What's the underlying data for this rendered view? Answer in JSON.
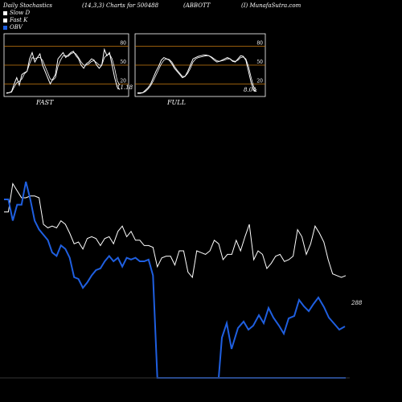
{
  "header": {
    "left": "Daily Stochastics",
    "center": "(14,3,3) Charts for 500488",
    "symbol": "(ABBOTT",
    "site": "(I) MunafaSutra.com"
  },
  "legend": [
    {
      "label": "Slow  D",
      "color": "#ffffff"
    },
    {
      "label": "Fast K",
      "color": "#ffffff"
    },
    {
      "label": "OBV",
      "color": "#1f5fe0"
    }
  ],
  "colors": {
    "obv": "#1f5fe0",
    "line": "#ffffff",
    "grid": "#c87a10",
    "bg": "#000000"
  },
  "chart_data": [
    {
      "type": "line",
      "panel": "fast",
      "label": "FAST",
      "last_value_label": "11.18",
      "ylim": [
        0,
        100
      ],
      "yticks": [
        20,
        50,
        80
      ],
      "series": [
        {
          "name": "Fast K",
          "values": [
            5,
            6,
            8,
            20,
            30,
            18,
            35,
            38,
            40,
            60,
            70,
            55,
            62,
            68,
            50,
            40,
            30,
            20,
            28,
            35,
            60,
            65,
            70,
            62,
            66,
            70,
            72,
            65,
            60,
            50,
            45,
            52,
            55,
            60,
            58,
            50,
            45,
            50,
            75,
            65,
            70,
            50,
            30,
            15,
            11
          ]
        },
        {
          "name": "Slow D",
          "values": [
            6,
            6,
            7,
            15,
            22,
            24,
            28,
            36,
            40,
            52,
            62,
            60,
            62,
            62,
            58,
            48,
            38,
            28,
            26,
            30,
            48,
            58,
            65,
            65,
            64,
            68,
            70,
            68,
            62,
            55,
            50,
            50,
            52,
            56,
            57,
            54,
            50,
            50,
            62,
            66,
            68,
            60,
            45,
            25,
            18
          ]
        }
      ]
    },
    {
      "type": "line",
      "panel": "full",
      "label": "FULL",
      "last_value_label": "8.04",
      "ylim": [
        0,
        100
      ],
      "yticks": [
        20,
        50,
        80
      ],
      "series": [
        {
          "name": "Fast K",
          "values": [
            5,
            5,
            6,
            10,
            14,
            20,
            30,
            40,
            48,
            58,
            62,
            60,
            58,
            52,
            45,
            40,
            35,
            30,
            32,
            40,
            50,
            60,
            62,
            64,
            65,
            66,
            66,
            65,
            62,
            58,
            55,
            56,
            58,
            60,
            62,
            60,
            56,
            55,
            60,
            65,
            64,
            58,
            40,
            22,
            10,
            8
          ]
        },
        {
          "name": "Slow D",
          "values": [
            6,
            6,
            6,
            8,
            12,
            17,
            25,
            34,
            43,
            52,
            58,
            60,
            59,
            55,
            48,
            42,
            37,
            32,
            32,
            37,
            45,
            55,
            60,
            62,
            63,
            64,
            65,
            65,
            63,
            60,
            57,
            56,
            57,
            58,
            60,
            60,
            57,
            56,
            58,
            62,
            63,
            60,
            48,
            30,
            15,
            10
          ]
        }
      ]
    },
    {
      "type": "line",
      "panel": "price",
      "last_value_label": "288",
      "series": [
        {
          "name": "Price",
          "values": [
            62,
            62,
            78,
            74,
            70,
            70,
            71,
            71,
            70,
            55,
            53,
            54,
            53,
            57,
            55,
            50,
            44,
            45,
            41,
            47,
            48,
            47,
            43,
            47,
            48,
            44,
            51,
            54,
            48,
            51,
            46,
            46,
            43,
            43,
            42,
            31,
            36,
            37,
            37,
            32,
            40,
            40,
            28,
            25,
            40,
            39,
            38,
            40,
            46,
            44,
            35,
            38,
            38,
            46,
            40,
            48,
            55,
            35,
            40,
            38,
            30,
            33,
            37,
            38,
            34,
            35,
            37,
            52,
            48,
            38,
            44,
            54,
            50,
            45,
            35,
            27,
            26,
            25,
            26
          ]
        },
        {
          "name": "OBV",
          "values": [
            60,
            60,
            48,
            57,
            57,
            70,
            60,
            48,
            43,
            40,
            37,
            30,
            28,
            34,
            32,
            27,
            16,
            15,
            10,
            13,
            17,
            20,
            21,
            25,
            28,
            25,
            27,
            22,
            27,
            26,
            27,
            25,
            25,
            26,
            17,
            -30,
            -30,
            -30,
            -30,
            -30,
            -30,
            -30,
            -30,
            -30,
            -30,
            -30,
            -30,
            -30,
            -30,
            -30,
            -30,
            -30,
            -30,
            -30,
            -30,
            -30,
            -30,
            -30,
            -30,
            -30,
            -30,
            -30,
            -30,
            -30,
            -30,
            -30,
            -30,
            -30,
            -30,
            -30,
            -30,
            -30,
            -30,
            -30,
            -30,
            -30,
            -30,
            -30,
            -30
          ]
        }
      ]
    }
  ]
}
